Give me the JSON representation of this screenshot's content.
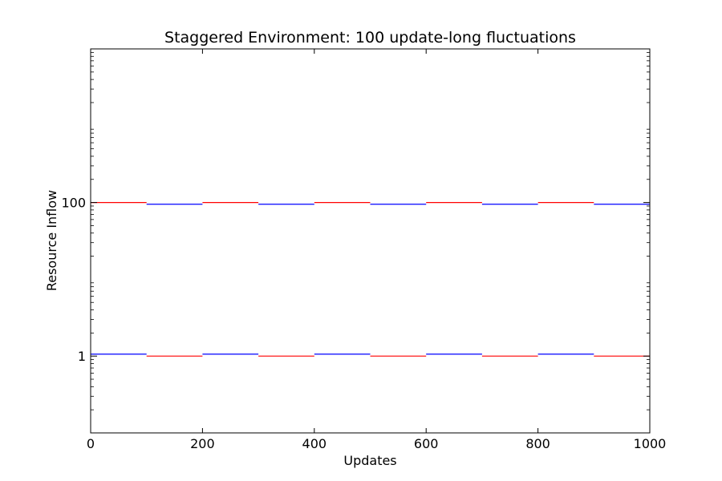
{
  "chart_data": {
    "type": "line",
    "title": "Staggered Environment: 100 update-long fluctuations",
    "xlabel": "Updates",
    "ylabel": "Resource Inflow",
    "xlim": [
      0,
      1000
    ],
    "y_scale": "log",
    "ylim": [
      0.1,
      10000
    ],
    "x_ticks": [
      0,
      200,
      400,
      600,
      800,
      1000
    ],
    "y_ticks": [
      1,
      100
    ],
    "y_tick_labels": [
      "1",
      "100"
    ],
    "grid": false,
    "legend": "none",
    "series": [
      {
        "color": "#ff0000",
        "segments": [
          {
            "x": [
              0,
              100
            ],
            "y": 100
          },
          {
            "x": [
              100,
              200
            ],
            "y": 1
          },
          {
            "x": [
              200,
              300
            ],
            "y": 100
          },
          {
            "x": [
              300,
              400
            ],
            "y": 1
          },
          {
            "x": [
              400,
              500
            ],
            "y": 100
          },
          {
            "x": [
              500,
              600
            ],
            "y": 1
          },
          {
            "x": [
              600,
              700
            ],
            "y": 100
          },
          {
            "x": [
              700,
              800
            ],
            "y": 1
          },
          {
            "x": [
              800,
              900
            ],
            "y": 100
          },
          {
            "x": [
              900,
              1000
            ],
            "y": 1
          }
        ]
      },
      {
        "color": "#0000ff",
        "segments": [
          {
            "x": [
              0,
              100
            ],
            "y": 1.06
          },
          {
            "x": [
              100,
              200
            ],
            "y": 95
          },
          {
            "x": [
              200,
              300
            ],
            "y": 1.06
          },
          {
            "x": [
              300,
              400
            ],
            "y": 95
          },
          {
            "x": [
              400,
              500
            ],
            "y": 1.06
          },
          {
            "x": [
              500,
              600
            ],
            "y": 95
          },
          {
            "x": [
              600,
              700
            ],
            "y": 1.06
          },
          {
            "x": [
              700,
              800
            ],
            "y": 95
          },
          {
            "x": [
              800,
              900
            ],
            "y": 1.06
          },
          {
            "x": [
              900,
              1000
            ],
            "y": 95
          }
        ]
      }
    ]
  }
}
